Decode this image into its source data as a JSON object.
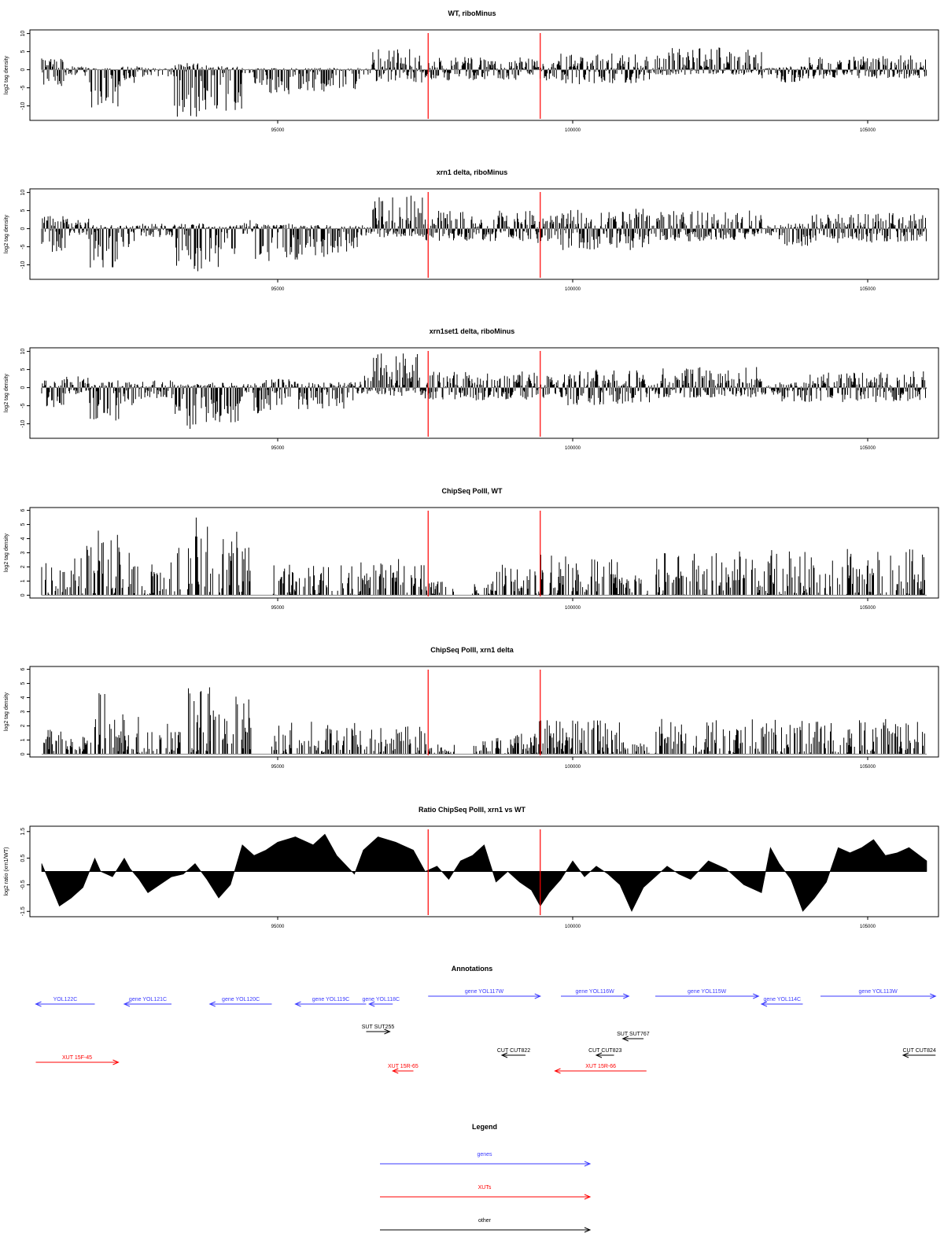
{
  "chart_data": [
    {
      "type": "bar",
      "title": "WT, riboMinus",
      "xlabel": "",
      "ylabel": "log2 tag density",
      "xlim": [
        90800,
        106200
      ],
      "ylim": [
        -14,
        11
      ],
      "yticks": [
        "10",
        "5",
        "0",
        "-5",
        "-10"
      ],
      "xticks": [
        "95000",
        "100000",
        "105000"
      ],
      "red_lines_x": [
        97550,
        99450
      ],
      "segments": [
        {
          "x0": 91000,
          "x1": 91400,
          "top": 3.2,
          "bottom": -4.5
        },
        {
          "x0": 91400,
          "x1": 91800,
          "top": 1.0,
          "bottom": -2.0
        },
        {
          "x0": 91800,
          "x1": 92350,
          "top": 0.5,
          "bottom": -10.5
        },
        {
          "x0": 92350,
          "x1": 92700,
          "top": 1.0,
          "bottom": -4.0
        },
        {
          "x0": 92700,
          "x1": 93250,
          "top": 0.5,
          "bottom": -2.0
        },
        {
          "x0": 93250,
          "x1": 93800,
          "top": 2.0,
          "bottom": -13.0
        },
        {
          "x0": 93800,
          "x1": 94400,
          "top": 1.0,
          "bottom": -11.5
        },
        {
          "x0": 94400,
          "x1": 94600,
          "top": 0.2,
          "bottom": -1.0
        },
        {
          "x0": 94600,
          "x1": 95400,
          "top": 0.5,
          "bottom": -7.0
        },
        {
          "x0": 95400,
          "x1": 96400,
          "top": 0.5,
          "bottom": -6.0
        },
        {
          "x0": 96400,
          "x1": 96600,
          "top": 0.3,
          "bottom": -1.5
        },
        {
          "x0": 96600,
          "x1": 97500,
          "top": 6.0,
          "bottom": -3.5
        },
        {
          "x0": 97500,
          "x1": 99400,
          "top": 3.5,
          "bottom": -3.0
        },
        {
          "x0": 99400,
          "x1": 99800,
          "top": 2.5,
          "bottom": -3.0
        },
        {
          "x0": 99800,
          "x1": 101300,
          "top": 4.5,
          "bottom": -4.0
        },
        {
          "x0": 101300,
          "x1": 101400,
          "top": 0.5,
          "bottom": -1.0
        },
        {
          "x0": 101400,
          "x1": 103200,
          "top": 6.2,
          "bottom": -1.5
        },
        {
          "x0": 103200,
          "x1": 103500,
          "top": 0.5,
          "bottom": -2.5
        },
        {
          "x0": 103500,
          "x1": 104000,
          "top": 1.0,
          "bottom": -4.0
        },
        {
          "x0": 104000,
          "x1": 106000,
          "top": 4.0,
          "bottom": -2.5
        }
      ]
    },
    {
      "type": "bar",
      "title": "xrn1 delta, riboMinus",
      "xlabel": "",
      "ylabel": "log2 tag density",
      "xlim": [
        90800,
        106200
      ],
      "ylim": [
        -14,
        11
      ],
      "yticks": [
        "10",
        "5",
        "0",
        "-5",
        "-10"
      ],
      "xticks": [
        "95000",
        "100000",
        "105000"
      ],
      "red_lines_x": [
        97550,
        99450
      ],
      "segments": [
        {
          "x0": 91000,
          "x1": 91400,
          "top": 3.5,
          "bottom": -6.5
        },
        {
          "x0": 91400,
          "x1": 91800,
          "top": 3.0,
          "bottom": -2.0
        },
        {
          "x0": 91800,
          "x1": 92350,
          "top": 1.0,
          "bottom": -11.0
        },
        {
          "x0": 92350,
          "x1": 92700,
          "top": 1.0,
          "bottom": -5.5
        },
        {
          "x0": 92700,
          "x1": 93250,
          "top": 1.5,
          "bottom": -2.5
        },
        {
          "x0": 93250,
          "x1": 93800,
          "top": 1.5,
          "bottom": -13.0
        },
        {
          "x0": 93800,
          "x1": 94400,
          "top": 1.0,
          "bottom": -11.0
        },
        {
          "x0": 94400,
          "x1": 94600,
          "top": 2.5,
          "bottom": -1.5
        },
        {
          "x0": 94600,
          "x1": 95400,
          "top": 1.5,
          "bottom": -9.0
        },
        {
          "x0": 95400,
          "x1": 96400,
          "top": 1.0,
          "bottom": -8.0
        },
        {
          "x0": 96400,
          "x1": 96600,
          "top": 1.0,
          "bottom": -2.0
        },
        {
          "x0": 96600,
          "x1": 97500,
          "top": 9.5,
          "bottom": -2.5
        },
        {
          "x0": 97500,
          "x1": 99400,
          "top": 5.0,
          "bottom": -3.5
        },
        {
          "x0": 99400,
          "x1": 99800,
          "top": 4.0,
          "bottom": -4.0
        },
        {
          "x0": 99800,
          "x1": 101300,
          "top": 5.5,
          "bottom": -6.0
        },
        {
          "x0": 101300,
          "x1": 101400,
          "top": 1.0,
          "bottom": -1.5
        },
        {
          "x0": 101400,
          "x1": 103200,
          "top": 5.0,
          "bottom": -3.5
        },
        {
          "x0": 103200,
          "x1": 103500,
          "top": 1.0,
          "bottom": -2.0
        },
        {
          "x0": 103500,
          "x1": 104000,
          "top": 1.5,
          "bottom": -5.5
        },
        {
          "x0": 104000,
          "x1": 106000,
          "top": 4.5,
          "bottom": -4.0
        }
      ]
    },
    {
      "type": "bar",
      "title": "xrn1set1 delta, riboMinus",
      "xlabel": "",
      "ylabel": "log2 tag density",
      "xlim": [
        90800,
        106200
      ],
      "ylim": [
        -14,
        11
      ],
      "yticks": [
        "10",
        "5",
        "0",
        "-5",
        "-10"
      ],
      "xticks": [
        "95000",
        "100000",
        "105000"
      ],
      "red_lines_x": [
        97550,
        99450
      ],
      "segments": [
        {
          "x0": 91000,
          "x1": 91400,
          "top": 2.5,
          "bottom": -5.5
        },
        {
          "x0": 91400,
          "x1": 91800,
          "top": 3.5,
          "bottom": -2.0
        },
        {
          "x0": 91800,
          "x1": 92350,
          "top": 2.0,
          "bottom": -10.5
        },
        {
          "x0": 92350,
          "x1": 92700,
          "top": 1.5,
          "bottom": -5.0
        },
        {
          "x0": 92700,
          "x1": 93250,
          "top": 2.0,
          "bottom": -3.0
        },
        {
          "x0": 93250,
          "x1": 93800,
          "top": 1.0,
          "bottom": -11.5
        },
        {
          "x0": 93800,
          "x1": 94400,
          "top": 1.5,
          "bottom": -10.0
        },
        {
          "x0": 94400,
          "x1": 94600,
          "top": 1.0,
          "bottom": -1.5
        },
        {
          "x0": 94600,
          "x1": 95400,
          "top": 2.5,
          "bottom": -7.5
        },
        {
          "x0": 95400,
          "x1": 96400,
          "top": 1.5,
          "bottom": -6.0
        },
        {
          "x0": 96400,
          "x1": 96600,
          "top": 4.0,
          "bottom": -2.0
        },
        {
          "x0": 96600,
          "x1": 97500,
          "top": 9.5,
          "bottom": -2.5
        },
        {
          "x0": 97500,
          "x1": 99400,
          "top": 4.5,
          "bottom": -3.5
        },
        {
          "x0": 99400,
          "x1": 99800,
          "top": 3.5,
          "bottom": -3.0
        },
        {
          "x0": 99800,
          "x1": 101300,
          "top": 5.0,
          "bottom": -5.0
        },
        {
          "x0": 101300,
          "x1": 101400,
          "top": 1.0,
          "bottom": -1.5
        },
        {
          "x0": 101400,
          "x1": 103200,
          "top": 6.0,
          "bottom": -3.0
        },
        {
          "x0": 103200,
          "x1": 103500,
          "top": 1.0,
          "bottom": -2.0
        },
        {
          "x0": 103500,
          "x1": 104000,
          "top": 1.5,
          "bottom": -4.0
        },
        {
          "x0": 104000,
          "x1": 106000,
          "top": 4.5,
          "bottom": -4.0
        }
      ]
    },
    {
      "type": "bar",
      "title": "ChipSeq PolII, WT",
      "xlabel": "",
      "ylabel": "log2 tag density",
      "xlim": [
        90800,
        106200
      ],
      "ylim": [
        -0.2,
        6.2
      ],
      "yticks": [
        "6",
        "5",
        "4",
        "3",
        "2",
        "1",
        "0"
      ],
      "xticks": [
        "95000",
        "100000",
        "105000"
      ],
      "red_lines_x": [
        97550,
        99450
      ],
      "segments": [
        {
          "x0": 91000,
          "x1": 91500,
          "top": 2.3,
          "bottom": 0
        },
        {
          "x0": 91500,
          "x1": 91900,
          "top": 3.6,
          "bottom": 0
        },
        {
          "x0": 91900,
          "x1": 92350,
          "top": 5.2,
          "bottom": 0
        },
        {
          "x0": 92350,
          "x1": 92700,
          "top": 3.8,
          "bottom": 0
        },
        {
          "x0": 92700,
          "x1": 93350,
          "top": 3.4,
          "bottom": 0
        },
        {
          "x0": 93350,
          "x1": 93450,
          "top": 0,
          "bottom": 0
        },
        {
          "x0": 93450,
          "x1": 93850,
          "top": 5.9,
          "bottom": 0
        },
        {
          "x0": 93850,
          "x1": 94550,
          "top": 4.5,
          "bottom": 0
        },
        {
          "x0": 94900,
          "x1": 96400,
          "top": 2.2,
          "bottom": 0
        },
        {
          "x0": 96400,
          "x1": 97500,
          "top": 2.6,
          "bottom": 0
        },
        {
          "x0": 97500,
          "x1": 98000,
          "top": 1.0,
          "bottom": 0
        },
        {
          "x0": 98300,
          "x1": 98700,
          "top": 1.0,
          "bottom": 0
        },
        {
          "x0": 98700,
          "x1": 99400,
          "top": 2.2,
          "bottom": 0
        },
        {
          "x0": 99400,
          "x1": 100000,
          "top": 3.0,
          "bottom": 0
        },
        {
          "x0": 100000,
          "x1": 100800,
          "top": 2.6,
          "bottom": 0
        },
        {
          "x0": 100800,
          "x1": 101300,
          "top": 1.4,
          "bottom": 0
        },
        {
          "x0": 101400,
          "x1": 103300,
          "top": 3.1,
          "bottom": 0
        },
        {
          "x0": 103300,
          "x1": 106000,
          "top": 3.3,
          "bottom": 0
        }
      ]
    },
    {
      "type": "bar",
      "title": "ChipSeq PolII, xrn1 delta",
      "xlabel": "",
      "ylabel": "log2 tag density",
      "xlim": [
        90800,
        106200
      ],
      "ylim": [
        -0.2,
        6.2
      ],
      "yticks": [
        "6",
        "5",
        "4",
        "3",
        "2",
        "1",
        "0"
      ],
      "xticks": [
        "95000",
        "100000",
        "105000"
      ],
      "red_lines_x": [
        97550,
        99450
      ],
      "segments": [
        {
          "x0": 91000,
          "x1": 91400,
          "top": 2.1,
          "bottom": 0
        },
        {
          "x0": 91400,
          "x1": 91900,
          "top": 1.5,
          "bottom": 0
        },
        {
          "x0": 91900,
          "x1": 92350,
          "top": 4.8,
          "bottom": 0
        },
        {
          "x0": 92350,
          "x1": 92700,
          "top": 3.2,
          "bottom": 0
        },
        {
          "x0": 92700,
          "x1": 93350,
          "top": 2.3,
          "bottom": 0
        },
        {
          "x0": 93350,
          "x1": 93450,
          "top": 0,
          "bottom": 0
        },
        {
          "x0": 93450,
          "x1": 93850,
          "top": 5.3,
          "bottom": 0
        },
        {
          "x0": 93850,
          "x1": 94550,
          "top": 4.4,
          "bottom": 0
        },
        {
          "x0": 94900,
          "x1": 96400,
          "top": 2.3,
          "bottom": 0
        },
        {
          "x0": 96400,
          "x1": 97500,
          "top": 2.1,
          "bottom": 0
        },
        {
          "x0": 97500,
          "x1": 98000,
          "top": 0.8,
          "bottom": 0
        },
        {
          "x0": 98300,
          "x1": 99000,
          "top": 1.2,
          "bottom": 0
        },
        {
          "x0": 99000,
          "x1": 99400,
          "top": 1.5,
          "bottom": 0
        },
        {
          "x0": 99400,
          "x1": 100000,
          "top": 2.5,
          "bottom": 0
        },
        {
          "x0": 100000,
          "x1": 100800,
          "top": 2.6,
          "bottom": 0
        },
        {
          "x0": 100800,
          "x1": 101300,
          "top": 1.0,
          "bottom": 0
        },
        {
          "x0": 101400,
          "x1": 103300,
          "top": 2.5,
          "bottom": 0
        },
        {
          "x0": 103300,
          "x1": 106000,
          "top": 2.5,
          "bottom": 0
        }
      ]
    },
    {
      "type": "area",
      "title": "Ratio ChipSeq PolII, xrn1 vs WT",
      "xlabel": "",
      "ylabel": "log2 ratio (xrn1/WT)",
      "xlim": [
        90800,
        106200
      ],
      "ylim": [
        -1.7,
        1.7
      ],
      "yticks": [
        "1.5",
        "0.5",
        "-0.5",
        "-1.5"
      ],
      "xticks": [
        "95000",
        "100000",
        "105000"
      ],
      "red_lines_x": [
        97550,
        99450
      ],
      "x": [
        91000,
        91150,
        91300,
        91500,
        91700,
        91900,
        92000,
        92100,
        92200,
        92400,
        92500,
        92650,
        92800,
        93000,
        93200,
        93400,
        93600,
        93800,
        94000,
        94200,
        94400,
        94600,
        94800,
        95000,
        95300,
        95600,
        95800,
        96000,
        96300,
        96450,
        96700,
        97000,
        97300,
        97500,
        97700,
        97900,
        98100,
        98300,
        98500,
        98700,
        98900,
        99100,
        99300,
        99450,
        99600,
        99800,
        100000,
        100200,
        100400,
        100600,
        100800,
        101000,
        101200,
        101400,
        101600,
        101800,
        102000,
        102300,
        102600,
        102900,
        103200,
        103350,
        103500,
        103700,
        103900,
        104100,
        104300,
        104500,
        104700,
        104900,
        105100,
        105300,
        105500,
        105700,
        106000
      ],
      "y": [
        0.3,
        -0.5,
        -1.3,
        -1.0,
        -0.6,
        0.5,
        0.0,
        -0.1,
        -0.2,
        0.5,
        0.1,
        -0.3,
        -0.8,
        -0.5,
        -0.2,
        -0.1,
        0.3,
        -0.3,
        -1.0,
        -0.5,
        1.0,
        0.6,
        0.8,
        1.1,
        1.3,
        1.0,
        1.4,
        0.6,
        -0.1,
        0.8,
        1.3,
        1.1,
        0.8,
        0.0,
        0.2,
        -0.3,
        0.4,
        0.6,
        1.0,
        -0.4,
        0.0,
        -0.4,
        -0.7,
        -1.3,
        -0.8,
        -0.3,
        0.4,
        -0.2,
        0.2,
        -0.1,
        -0.5,
        -1.5,
        -0.6,
        -0.2,
        0.2,
        -0.1,
        -0.3,
        0.4,
        0.1,
        -0.5,
        -0.8,
        0.9,
        0.3,
        -0.3,
        -1.5,
        -1.0,
        -0.4,
        0.9,
        0.7,
        0.9,
        1.2,
        0.6,
        0.7,
        0.9,
        0.4
      ]
    },
    {
      "type": "annotation_track",
      "title": "Annotations",
      "xlim": [
        90800,
        106200
      ],
      "features": [
        {
          "label": "YOL122C",
          "x0": 90900,
          "x1": 91900,
          "strand": "-",
          "color": "#3a3aff",
          "row": 0
        },
        {
          "label": "gene YOL121C",
          "x0": 92400,
          "x1": 93200,
          "strand": "-",
          "color": "#3a3aff",
          "row": 0
        },
        {
          "label": "gene YOL120C",
          "x0": 93850,
          "x1": 94900,
          "strand": "-",
          "color": "#3a3aff",
          "row": 0
        },
        {
          "label": "gene YOL119C",
          "x0": 95300,
          "x1": 96500,
          "strand": "-",
          "color": "#3a3aff",
          "row": 0
        },
        {
          "label": "gene YOL118C",
          "x0": 96550,
          "x1": 96950,
          "strand": "-",
          "color": "#3a3aff",
          "row": 0
        },
        {
          "label": "gene YOL117W",
          "x0": 97550,
          "x1": 99450,
          "strand": "+",
          "color": "#3a3aff",
          "row": 1
        },
        {
          "label": "gene YOL116W",
          "x0": 99800,
          "x1": 100950,
          "strand": "+",
          "color": "#3a3aff",
          "row": 1
        },
        {
          "label": "gene YOL115W",
          "x0": 101400,
          "x1": 103150,
          "strand": "+",
          "color": "#3a3aff",
          "row": 1
        },
        {
          "label": "gene YOL114C",
          "x0": 103200,
          "x1": 103900,
          "strand": "-",
          "color": "#3a3aff",
          "row": 0
        },
        {
          "label": "gene YOL113W",
          "x0": 104200,
          "x1": 106150,
          "strand": "+",
          "color": "#3a3aff",
          "row": 1
        },
        {
          "label": "SUT SUT255",
          "x0": 96500,
          "x1": 96900,
          "strand": "+",
          "color": "#000000",
          "row": 2
        },
        {
          "label": "SUT SUT767",
          "x0": 100850,
          "x1": 101200,
          "strand": "-",
          "color": "#000000",
          "row": 3
        },
        {
          "label": "CUT CUT822",
          "x0": 98800,
          "x1": 99200,
          "strand": "-",
          "color": "#000000",
          "row": 4
        },
        {
          "label": "CUT CUT823",
          "x0": 100400,
          "x1": 100700,
          "strand": "-",
          "color": "#000000",
          "row": 4
        },
        {
          "label": "CUT CUT824",
          "x0": 105600,
          "x1": 106150,
          "strand": "-",
          "color": "#000000",
          "row": 4
        },
        {
          "label": "XUT 15F-45",
          "x0": 90900,
          "x1": 92300,
          "strand": "+",
          "color": "#ff0000",
          "row": 5
        },
        {
          "label": "XUT 15R-65",
          "x0": 96950,
          "x1": 97300,
          "strand": "-",
          "color": "#ff0000",
          "row": 6
        },
        {
          "label": "XUT 15R-66",
          "x0": 99700,
          "x1": 101250,
          "strand": "-",
          "color": "#ff0000",
          "row": 6
        }
      ]
    },
    {
      "type": "legend",
      "title": "Legend",
      "entries": [
        {
          "label": "genes",
          "color": "#3a3aff"
        },
        {
          "label": "XUTs",
          "color": "#ff0000"
        },
        {
          "label": "other",
          "color": "#000000"
        }
      ]
    }
  ]
}
